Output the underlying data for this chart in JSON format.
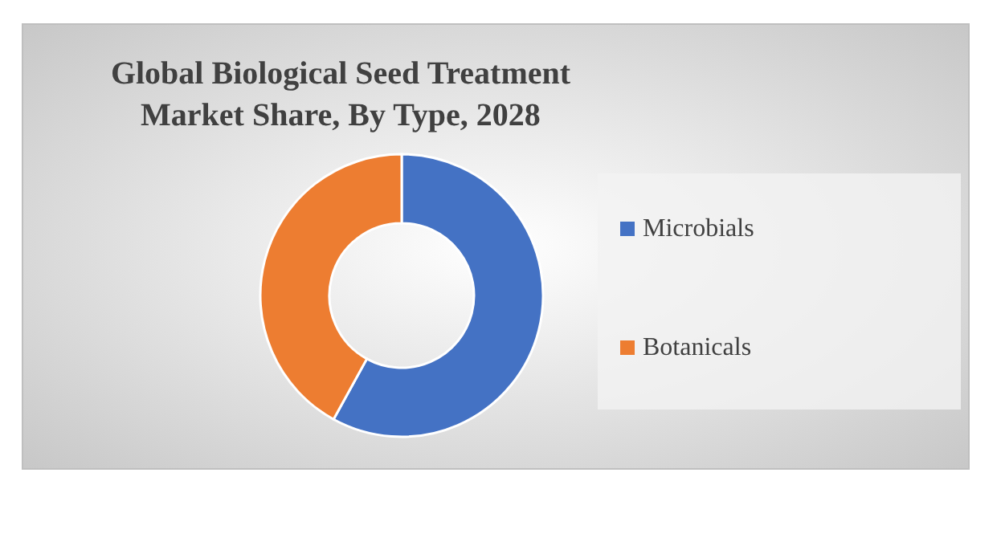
{
  "chart_data": {
    "type": "donut",
    "title": "Global Biological Seed Treatment Market Share, By Type, 2028",
    "categories": [
      "Microbials",
      "Botanicals"
    ],
    "values": [
      58,
      42
    ],
    "colors": [
      "#4472c4",
      "#ed7d31"
    ],
    "legend": "right"
  }
}
